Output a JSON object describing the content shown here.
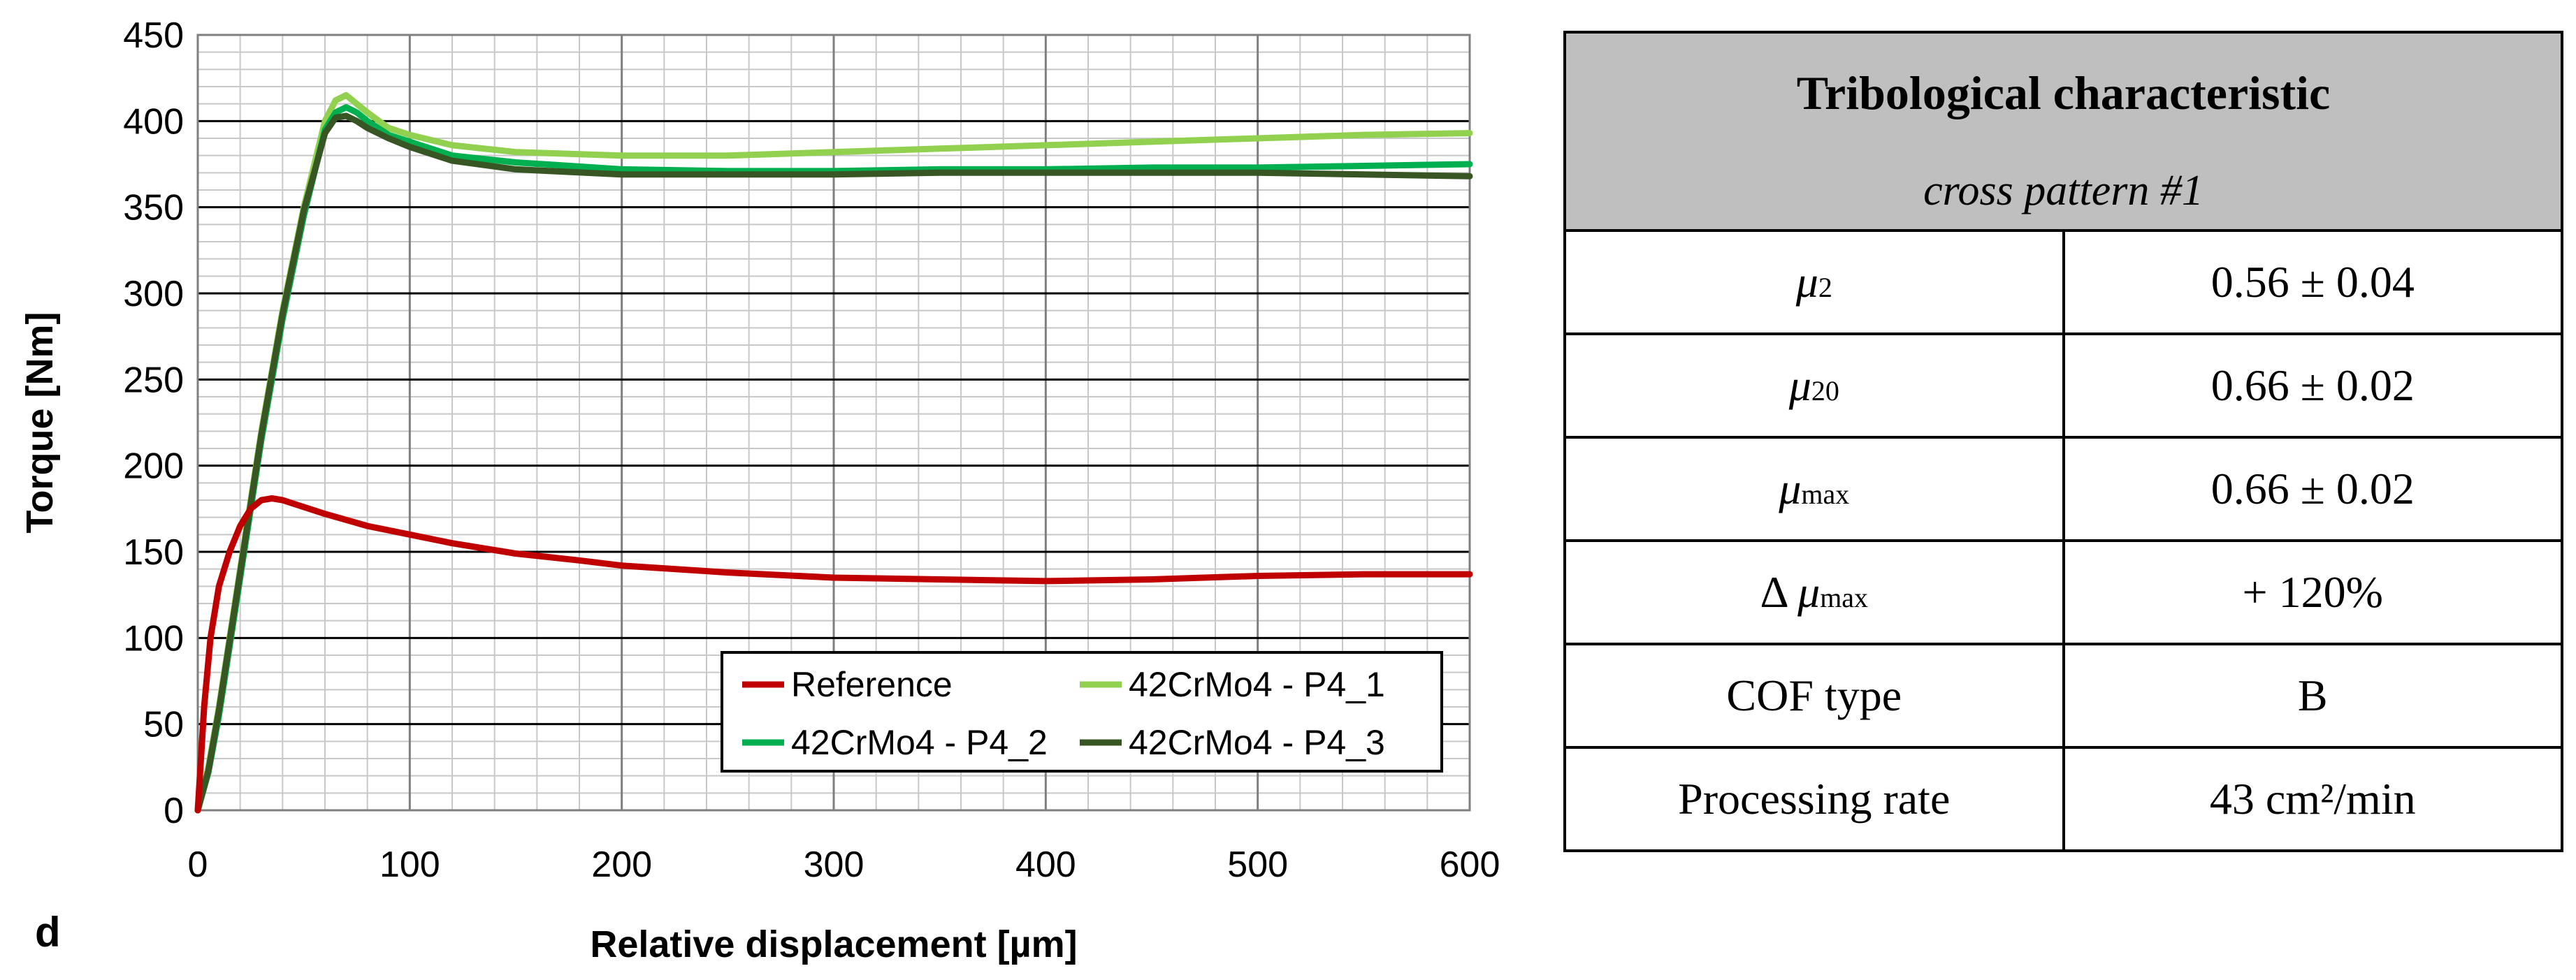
{
  "panel_label": "d",
  "colors": {
    "reference": "#c00000",
    "p4_1": "#92d050",
    "p4_2": "#00b050",
    "p4_3": "#375623"
  },
  "chart_data": {
    "type": "line",
    "title": "",
    "xlabel": "Relative displacement [µm]",
    "ylabel": "Torque [Nm]",
    "xlim": [
      0,
      600
    ],
    "ylim": [
      0,
      450
    ],
    "x_ticks": [
      "0",
      "100",
      "200",
      "300",
      "400",
      "500",
      "600"
    ],
    "y_ticks": [
      "0",
      "50",
      "100",
      "150",
      "200",
      "250",
      "300",
      "350",
      "400",
      "450"
    ],
    "grid": true,
    "legend_position": "bottom-right",
    "series": [
      {
        "name": "Reference",
        "color": "#c00000",
        "x": [
          0,
          3,
          6,
          10,
          15,
          20,
          25,
          30,
          35,
          40,
          50,
          60,
          80,
          100,
          120,
          150,
          180,
          200,
          250,
          300,
          350,
          400,
          450,
          500,
          550,
          600
        ],
        "y": [
          0,
          60,
          100,
          130,
          150,
          165,
          175,
          180,
          181,
          180,
          176,
          172,
          165,
          160,
          155,
          149,
          145,
          142,
          138,
          135,
          134,
          133,
          134,
          136,
          137,
          137
        ]
      },
      {
        "name": "42CrMo4 - P4_1",
        "color": "#92d050",
        "x": [
          0,
          5,
          10,
          15,
          20,
          25,
          30,
          40,
          50,
          60,
          65,
          70,
          75,
          80,
          90,
          100,
          120,
          150,
          200,
          250,
          300,
          350,
          400,
          450,
          500,
          550,
          600
        ],
        "y": [
          0,
          25,
          60,
          100,
          140,
          180,
          220,
          290,
          350,
          400,
          412,
          415,
          410,
          405,
          396,
          392,
          386,
          382,
          380,
          380,
          382,
          384,
          386,
          388,
          390,
          392,
          393
        ]
      },
      {
        "name": "42CrMo4 - P4_2",
        "color": "#00b050",
        "x": [
          0,
          5,
          10,
          15,
          20,
          25,
          30,
          40,
          50,
          60,
          65,
          70,
          75,
          80,
          90,
          100,
          120,
          150,
          200,
          250,
          300,
          350,
          400,
          450,
          500,
          550,
          600
        ],
        "y": [
          0,
          22,
          55,
          95,
          135,
          175,
          215,
          285,
          345,
          395,
          405,
          408,
          405,
          400,
          392,
          388,
          380,
          376,
          372,
          371,
          371,
          372,
          372,
          373,
          373,
          374,
          375
        ]
      },
      {
        "name": "42CrMo4 - P4_3",
        "color": "#375623",
        "x": [
          0,
          5,
          10,
          15,
          20,
          25,
          30,
          40,
          50,
          60,
          65,
          70,
          75,
          80,
          90,
          100,
          120,
          150,
          200,
          250,
          300,
          350,
          400,
          450,
          500,
          550,
          600
        ],
        "y": [
          0,
          23,
          58,
          98,
          138,
          178,
          218,
          288,
          348,
          393,
          402,
          403,
          400,
          396,
          390,
          385,
          377,
          372,
          369,
          369,
          369,
          370,
          370,
          370,
          370,
          369,
          368
        ]
      }
    ]
  },
  "table": {
    "header_title": "Tribological characteristic",
    "header_subtitle": "cross pattern #1",
    "rows": [
      {
        "symbol": "μ",
        "sub": "2",
        "value": "0.56 ± 0.04"
      },
      {
        "symbol": "μ",
        "sub": "20",
        "value": "0.66 ± 0.02"
      },
      {
        "symbol": "μ",
        "sub": "max",
        "value": "0.66 ± 0.02"
      },
      {
        "prefix": "Δ ",
        "symbol": "μ",
        "sub": "max",
        "value": "+ 120%"
      },
      {
        "label": "COF type",
        "value": "B"
      },
      {
        "label": "Processing rate",
        "value": "43 cm²/min"
      }
    ]
  }
}
